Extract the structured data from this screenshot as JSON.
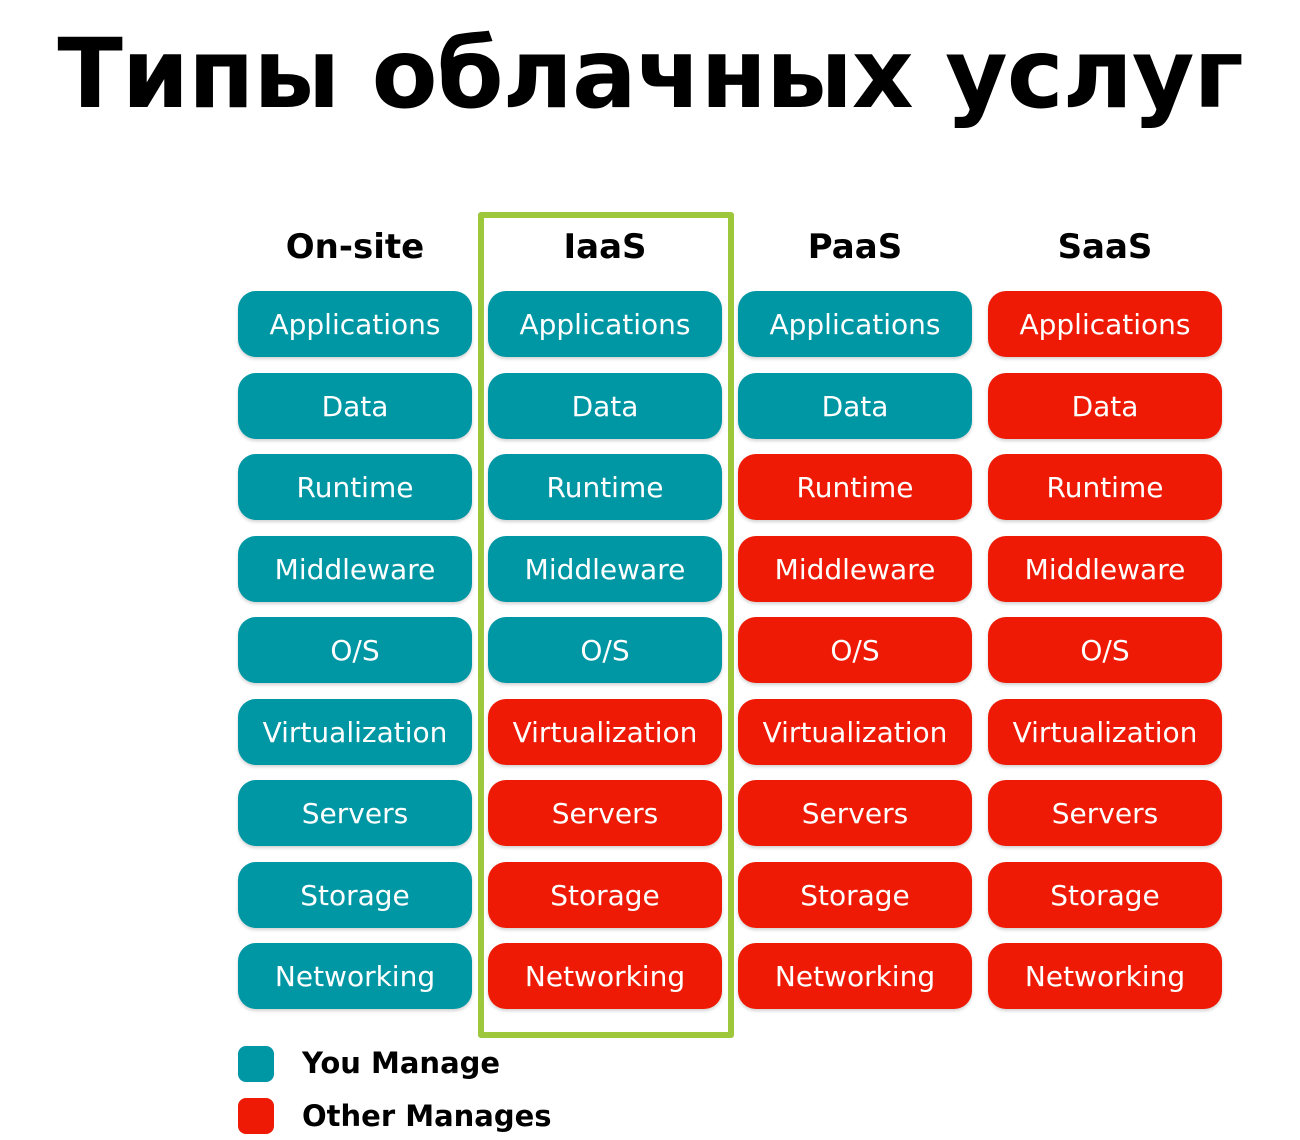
{
  "title": "Типы облачных услуг",
  "colors": {
    "you_manage": "#0097a4",
    "other_manages": "#ee1a05",
    "highlight": "#9dc83c"
  },
  "highlighted_column": "IaaS",
  "columns": [
    {
      "header": "On-site",
      "cells": [
        {
          "label": "Applications",
          "managed_by": "you"
        },
        {
          "label": "Data",
          "managed_by": "you"
        },
        {
          "label": "Runtime",
          "managed_by": "you"
        },
        {
          "label": "Middleware",
          "managed_by": "you"
        },
        {
          "label": "O/S",
          "managed_by": "you"
        },
        {
          "label": "Virtualization",
          "managed_by": "you"
        },
        {
          "label": "Servers",
          "managed_by": "you"
        },
        {
          "label": "Storage",
          "managed_by": "you"
        },
        {
          "label": "Networking",
          "managed_by": "you"
        }
      ]
    },
    {
      "header": "IaaS",
      "cells": [
        {
          "label": "Applications",
          "managed_by": "you"
        },
        {
          "label": "Data",
          "managed_by": "you"
        },
        {
          "label": "Runtime",
          "managed_by": "you"
        },
        {
          "label": "Middleware",
          "managed_by": "you"
        },
        {
          "label": "O/S",
          "managed_by": "you"
        },
        {
          "label": "Virtualization",
          "managed_by": "other"
        },
        {
          "label": "Servers",
          "managed_by": "other"
        },
        {
          "label": "Storage",
          "managed_by": "other"
        },
        {
          "label": "Networking",
          "managed_by": "other"
        }
      ]
    },
    {
      "header": "PaaS",
      "cells": [
        {
          "label": "Applications",
          "managed_by": "you"
        },
        {
          "label": "Data",
          "managed_by": "you"
        },
        {
          "label": "Runtime",
          "managed_by": "other"
        },
        {
          "label": "Middleware",
          "managed_by": "other"
        },
        {
          "label": "O/S",
          "managed_by": "other"
        },
        {
          "label": "Virtualization",
          "managed_by": "other"
        },
        {
          "label": "Servers",
          "managed_by": "other"
        },
        {
          "label": "Storage",
          "managed_by": "other"
        },
        {
          "label": "Networking",
          "managed_by": "other"
        }
      ]
    },
    {
      "header": "SaaS",
      "cells": [
        {
          "label": "Applications",
          "managed_by": "other"
        },
        {
          "label": "Data",
          "managed_by": "other"
        },
        {
          "label": "Runtime",
          "managed_by": "other"
        },
        {
          "label": "Middleware",
          "managed_by": "other"
        },
        {
          "label": "O/S",
          "managed_by": "other"
        },
        {
          "label": "Virtualization",
          "managed_by": "other"
        },
        {
          "label": "Servers",
          "managed_by": "other"
        },
        {
          "label": "Storage",
          "managed_by": "other"
        },
        {
          "label": "Networking",
          "managed_by": "other"
        }
      ]
    }
  ],
  "legend": {
    "you_manage": "You Manage",
    "other_manages": "Other Manages"
  }
}
